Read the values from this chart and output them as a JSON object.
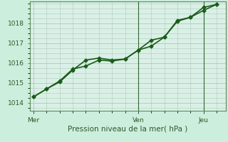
{
  "bg_color": "#cceedd",
  "plot_bg_color": "#daf0e6",
  "grid_color": "#aaccbb",
  "line_color": "#1a5c1a",
  "ylabel": "Pression niveau de la mer( hPa )",
  "ylim": [
    1013.6,
    1019.1
  ],
  "yticks": [
    1014,
    1015,
    1016,
    1017,
    1018
  ],
  "xtick_labels": [
    "Mer",
    "Ven",
    "Jeu"
  ],
  "xtick_positions": [
    0,
    8,
    13
  ],
  "xlim": [
    -0.3,
    14.7
  ],
  "line1_x": [
    0,
    1,
    2,
    3,
    4,
    5,
    6,
    7,
    8,
    9,
    10,
    11,
    12,
    13,
    14
  ],
  "line1_y": [
    1014.3,
    1014.7,
    1015.05,
    1015.65,
    1016.15,
    1016.25,
    1016.15,
    1016.2,
    1016.65,
    1016.85,
    1017.3,
    1018.15,
    1018.3,
    1018.8,
    1018.95
  ],
  "line2_x": [
    0,
    1,
    2,
    3,
    4,
    5,
    6,
    7,
    8,
    9,
    10,
    11,
    12,
    13,
    14
  ],
  "line2_y": [
    1014.3,
    1014.7,
    1015.1,
    1015.7,
    1015.85,
    1016.15,
    1016.1,
    1016.2,
    1016.65,
    1017.15,
    1017.3,
    1018.1,
    1018.3,
    1018.65,
    1018.95
  ],
  "vline_color": "#336633",
  "vline_positions": [
    8,
    13
  ],
  "marker": "D",
  "markersize": 2.5,
  "linewidth": 1.2,
  "fontsize_label": 7.5,
  "fontsize_tick": 6.5
}
